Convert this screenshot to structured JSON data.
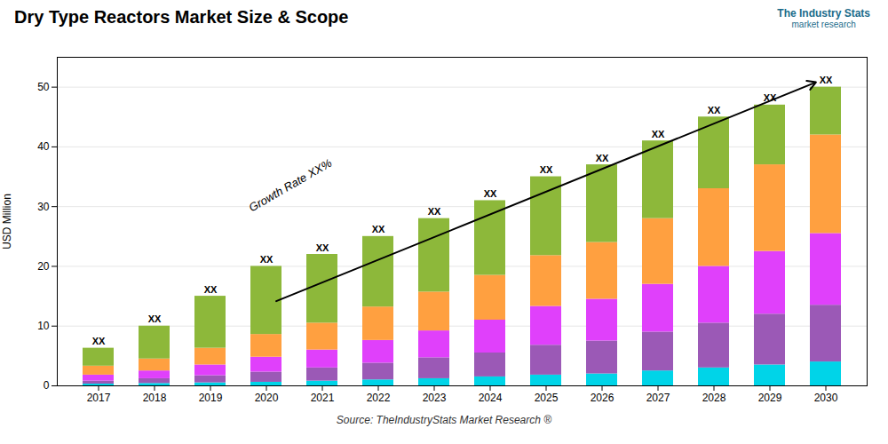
{
  "chart_data": {
    "type": "bar",
    "stacked": true,
    "title": "Dry Type Reactors Market Size & Scope",
    "ylabel": "USD Million",
    "source": "Source: TheIndustryStats Market Research ®",
    "categories": [
      "2017",
      "2018",
      "2019",
      "2020",
      "2021",
      "2022",
      "2023",
      "2024",
      "2025",
      "2026",
      "2027",
      "2028",
      "2029",
      "2030"
    ],
    "series": [
      {
        "color": "#00d4e8",
        "values": [
          0.3,
          0.4,
          0.5,
          0.6,
          0.8,
          1.0,
          1.2,
          1.5,
          1.8,
          2.0,
          2.5,
          3.0,
          3.5,
          4.0
        ]
      },
      {
        "color": "#9b59b6",
        "values": [
          0.5,
          0.8,
          1.2,
          1.7,
          2.2,
          2.8,
          3.5,
          4.0,
          5.0,
          5.5,
          6.5,
          7.5,
          8.5,
          9.5
        ]
      },
      {
        "color": "#e040fb",
        "values": [
          1.0,
          1.3,
          1.8,
          2.5,
          3.0,
          3.8,
          4.5,
          5.5,
          6.5,
          7.0,
          8.0,
          9.5,
          10.5,
          12.0
        ]
      },
      {
        "color": "#ffa040",
        "values": [
          1.5,
          2.0,
          2.8,
          3.8,
          4.5,
          5.6,
          6.5,
          7.5,
          8.5,
          9.5,
          11.0,
          13.0,
          14.5,
          16.5
        ]
      },
      {
        "color": "#8db83a",
        "values": [
          3.0,
          5.5,
          8.7,
          11.4,
          11.5,
          11.8,
          12.3,
          12.5,
          13.2,
          13.0,
          13.0,
          12.0,
          10.0,
          8.0
        ]
      }
    ],
    "ylim": [
      0,
      55
    ],
    "yticks": [
      0,
      10,
      20,
      30,
      40,
      50
    ],
    "grid": true,
    "total_labels": [
      "XX",
      "XX",
      "XX",
      "XX",
      "XX",
      "XX",
      "XX",
      "XX",
      "XX",
      "XX",
      "XX",
      "XX",
      "XX",
      "XX"
    ],
    "arrow": {
      "from": {
        "x": "2020",
        "y": 13.5
      },
      "to": {
        "x": "2030",
        "y": 51.5
      }
    },
    "annotations": [
      {
        "text": "Growth Rate XX%"
      },
      {
        "text": "The Industry Stats",
        "color": "#1a6b8a"
      },
      {
        "text": "market research",
        "color": "#1a6b8a"
      }
    ]
  }
}
